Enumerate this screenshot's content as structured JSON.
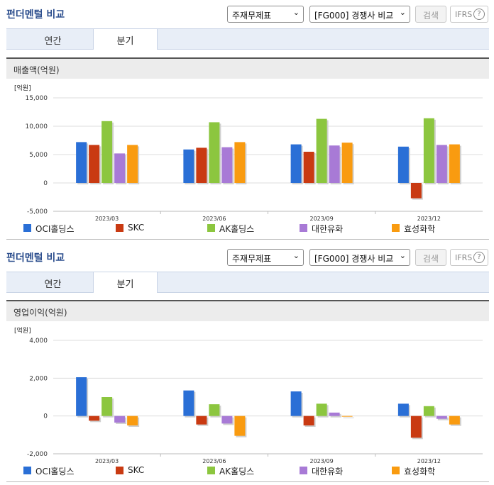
{
  "sections": [
    {
      "title": "펀더멘털 비교",
      "select1": "주재무제표",
      "select2": "[FG000] 경쟁사 비교",
      "search_button": "검색",
      "ifrs_label": "IFRS",
      "help_glyph": "?",
      "tabs": [
        "연간",
        "분기"
      ],
      "panel_title": "매출액(억원)",
      "chart_data": {
        "type": "bar",
        "unit_label": "[억원]",
        "categories": [
          "2023/03",
          "2023/06",
          "2023/09",
          "2023/12"
        ],
        "ylim": [
          -5000,
          15000
        ],
        "yticks": [
          15000,
          10000,
          5000,
          0,
          -5000
        ],
        "ytick_labels": [
          "15,000",
          "10,000",
          "5,000",
          "0",
          "-5,000"
        ],
        "grid": true,
        "legend_position": "bottom",
        "series": [
          {
            "name": "OCI홀딩스",
            "values": [
              7200,
              5900,
              6800,
              6400
            ]
          },
          {
            "name": "SKC",
            "values": [
              6700,
              6200,
              5500,
              -2700
            ]
          },
          {
            "name": "AK홀딩스",
            "values": [
              10900,
              10700,
              11300,
              11400
            ]
          },
          {
            "name": "대한유화",
            "values": [
              5200,
              6300,
              6600,
              6700
            ]
          },
          {
            "name": "효성화학",
            "values": [
              6700,
              7200,
              7100,
              6800
            ]
          }
        ]
      }
    },
    {
      "title": "펀더멘털 비교",
      "select1": "주재무제표",
      "select2": "[FG000] 경쟁사 비교",
      "search_button": "검색",
      "ifrs_label": "IFRS",
      "help_glyph": "?",
      "tabs": [
        "연간",
        "분기"
      ],
      "panel_title": "영업이익(억원)",
      "chart_data": {
        "type": "bar",
        "unit_label": "[억원]",
        "categories": [
          "2023/03",
          "2023/06",
          "2023/09",
          "2023/12"
        ],
        "ylim": [
          -2000,
          4000
        ],
        "yticks": [
          4000,
          2000,
          0,
          -2000
        ],
        "ytick_labels": [
          "4,000",
          "2,000",
          "0",
          "-2,000"
        ],
        "grid": true,
        "legend_position": "bottom",
        "series": [
          {
            "name": "OCI홀딩스",
            "values": [
              2050,
              1350,
              1300,
              650
            ]
          },
          {
            "name": "SKC",
            "values": [
              -250,
              -450,
              -500,
              -1150
            ]
          },
          {
            "name": "AK홀딩스",
            "values": [
              1000,
              620,
              650,
              520
            ]
          },
          {
            "name": "대한유화",
            "values": [
              -350,
              -400,
              180,
              -150
            ]
          },
          {
            "name": "효성화학",
            "values": [
              -500,
              -1050,
              -30,
              -450
            ]
          }
        ]
      }
    }
  ],
  "colors": [
    "#2a6fd6",
    "#c93a12",
    "#8cc63f",
    "#a87ad6",
    "#f99b10"
  ]
}
